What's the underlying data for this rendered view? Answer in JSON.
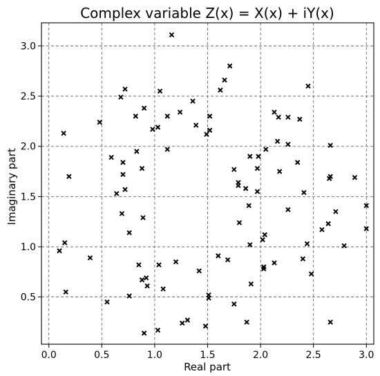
{
  "chart_data": {
    "type": "scatter",
    "title": "Complex variable Z(x) = X(x) + iY(x)",
    "xlabel": "Real part",
    "ylabel": "Imaginary part",
    "xlim": [
      -0.07,
      3.07
    ],
    "ylim": [
      0.03,
      3.23
    ],
    "xticks": [
      0.0,
      0.5,
      1.0,
      1.5,
      2.0,
      2.5,
      3.0
    ],
    "xtick_labels": [
      "0.0",
      "0.5",
      "1.0",
      "1.5",
      "2.0",
      "2.5",
      "3.0"
    ],
    "yticks": [
      0.5,
      1.0,
      1.5,
      2.0,
      2.5,
      3.0
    ],
    "ytick_labels": [
      "0.5",
      "1.0",
      "1.5",
      "2.0",
      "2.5",
      "3.0"
    ],
    "grid": true,
    "marker": "x",
    "color": "#000000",
    "points": [
      [
        1.16,
        3.11
      ],
      [
        1.71,
        2.8
      ],
      [
        0.72,
        2.57
      ],
      [
        1.05,
        2.55
      ],
      [
        1.62,
        2.56
      ],
      [
        1.66,
        2.66
      ],
      [
        2.45,
        2.6
      ],
      [
        0.68,
        2.49
      ],
      [
        1.36,
        2.45
      ],
      [
        0.9,
        2.38
      ],
      [
        1.24,
        2.34
      ],
      [
        1.12,
        2.3
      ],
      [
        0.82,
        2.3
      ],
      [
        1.52,
        2.3
      ],
      [
        2.13,
        2.34
      ],
      [
        2.17,
        2.29
      ],
      [
        2.26,
        2.29
      ],
      [
        2.37,
        2.27
      ],
      [
        0.48,
        2.24
      ],
      [
        1.39,
        2.21
      ],
      [
        1.03,
        2.19
      ],
      [
        0.98,
        2.17
      ],
      [
        1.52,
        2.16
      ],
      [
        1.49,
        2.12
      ],
      [
        0.14,
        2.13
      ],
      [
        2.16,
        2.05
      ],
      [
        2.26,
        2.02
      ],
      [
        2.66,
        2.01
      ],
      [
        1.12,
        1.97
      ],
      [
        2.05,
        1.97
      ],
      [
        0.83,
        1.95
      ],
      [
        1.9,
        1.9
      ],
      [
        1.98,
        1.9
      ],
      [
        0.59,
        1.89
      ],
      [
        0.7,
        1.84
      ],
      [
        2.35,
        1.84
      ],
      [
        0.88,
        1.78
      ],
      [
        1.75,
        1.77
      ],
      [
        1.97,
        1.78
      ],
      [
        2.18,
        1.75
      ],
      [
        0.7,
        1.72
      ],
      [
        0.19,
        1.7
      ],
      [
        2.66,
        1.7
      ],
      [
        2.65,
        1.68
      ],
      [
        2.89,
        1.69
      ],
      [
        1.79,
        1.64
      ],
      [
        1.79,
        1.61
      ],
      [
        1.86,
        1.58
      ],
      [
        0.72,
        1.57
      ],
      [
        1.97,
        1.55
      ],
      [
        2.41,
        1.54
      ],
      [
        0.64,
        1.53
      ],
      [
        1.89,
        1.41
      ],
      [
        3.0,
        1.41
      ],
      [
        2.26,
        1.37
      ],
      [
        2.71,
        1.35
      ],
      [
        0.69,
        1.33
      ],
      [
        0.89,
        1.29
      ],
      [
        1.8,
        1.24
      ],
      [
        2.64,
        1.23
      ],
      [
        2.58,
        1.17
      ],
      [
        3.0,
        1.18
      ],
      [
        0.76,
        1.14
      ],
      [
        2.04,
        1.12
      ],
      [
        2.02,
        1.07
      ],
      [
        0.15,
        1.04
      ],
      [
        2.44,
        1.03
      ],
      [
        1.9,
        1.02
      ],
      [
        2.79,
        1.01
      ],
      [
        0.1,
        0.96
      ],
      [
        1.6,
        0.91
      ],
      [
        0.39,
        0.89
      ],
      [
        2.4,
        0.88
      ],
      [
        1.69,
        0.87
      ],
      [
        1.2,
        0.85
      ],
      [
        2.13,
        0.84
      ],
      [
        0.85,
        0.82
      ],
      [
        1.04,
        0.82
      ],
      [
        2.03,
        0.8
      ],
      [
        2.03,
        0.78
      ],
      [
        1.42,
        0.76
      ],
      [
        2.48,
        0.73
      ],
      [
        0.92,
        0.69
      ],
      [
        0.88,
        0.67
      ],
      [
        1.91,
        0.63
      ],
      [
        0.93,
        0.61
      ],
      [
        1.08,
        0.58
      ],
      [
        0.16,
        0.55
      ],
      [
        1.51,
        0.52
      ],
      [
        0.76,
        0.51
      ],
      [
        1.51,
        0.49
      ],
      [
        0.55,
        0.45
      ],
      [
        1.75,
        0.43
      ],
      [
        1.31,
        0.27
      ],
      [
        1.26,
        0.24
      ],
      [
        1.87,
        0.25
      ],
      [
        2.66,
        0.25
      ],
      [
        1.48,
        0.21
      ],
      [
        1.03,
        0.17
      ],
      [
        0.9,
        0.14
      ]
    ]
  }
}
